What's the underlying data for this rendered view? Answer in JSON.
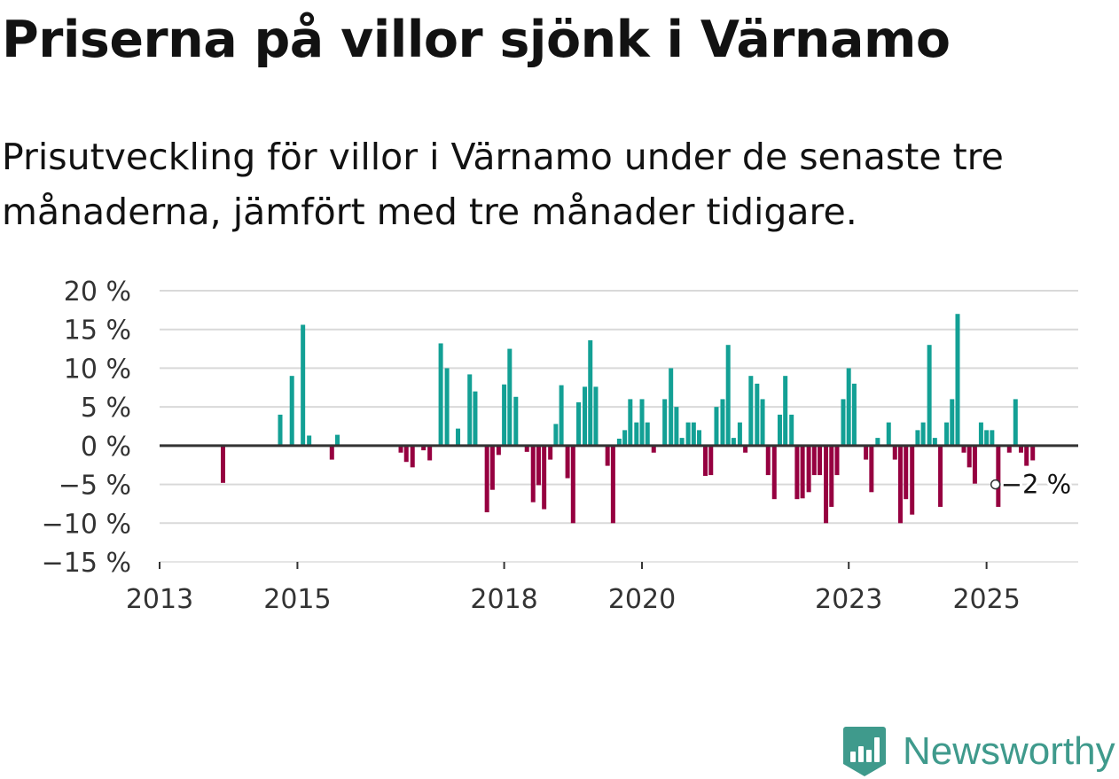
{
  "header": {
    "title": "Priserna på villor sjönk i Värnamo",
    "subtitle": "Prisutveckling för villor i Värnamo under de senaste tre månaderna, jämfört med tre månader tidigare."
  },
  "brand": {
    "name": "Newsworthy"
  },
  "colors": {
    "positive": "#13a095",
    "negative": "#960040",
    "grid": "#d9d9d9",
    "zero_line": "#333333",
    "brand": "#3f9a8c"
  },
  "chart_data": {
    "type": "bar",
    "title": "Priserna på villor sjönk i Värnamo",
    "xlabel": "",
    "ylabel": "",
    "x_unit": "year",
    "ylim": [
      -15,
      20
    ],
    "xlim": [
      2013.0,
      2026.33
    ],
    "y_ticks": [
      20,
      15,
      10,
      5,
      0,
      -5,
      -10,
      -15
    ],
    "y_tick_labels": [
      "20 %",
      "15 %",
      "10 %",
      "5 %",
      "0 %",
      "−5 %",
      "−10 %",
      "−15 %"
    ],
    "x_ticks": [
      2013,
      2015,
      2018,
      2020,
      2023,
      2025
    ],
    "x_tick_labels": [
      "2013",
      "2015",
      "2018",
      "2020",
      "2023",
      "2025"
    ],
    "grid": true,
    "series": [
      {
        "name": "Prisutveckling",
        "x": [
          2013.92,
          2014.75,
          2014.92,
          2015.08,
          2015.17,
          2015.5,
          2015.58,
          2016.5,
          2016.58,
          2016.67,
          2016.83,
          2016.92,
          2017.08,
          2017.17,
          2017.33,
          2017.5,
          2017.58,
          2017.75,
          2017.83,
          2017.92,
          2018.0,
          2018.08,
          2018.17,
          2018.33,
          2018.42,
          2018.5,
          2018.58,
          2018.67,
          2018.75,
          2018.83,
          2018.92,
          2019.0,
          2019.08,
          2019.17,
          2019.25,
          2019.33,
          2019.5,
          2019.58,
          2019.67,
          2019.75,
          2019.83,
          2019.92,
          2020.0,
          2020.08,
          2020.17,
          2020.33,
          2020.42,
          2020.5,
          2020.58,
          2020.67,
          2020.75,
          2020.83,
          2020.92,
          2021.0,
          2021.08,
          2021.17,
          2021.25,
          2021.33,
          2021.42,
          2021.5,
          2021.58,
          2021.67,
          2021.75,
          2021.83,
          2021.92,
          2022.0,
          2022.08,
          2022.17,
          2022.25,
          2022.33,
          2022.42,
          2022.5,
          2022.58,
          2022.67,
          2022.75,
          2022.83,
          2022.92,
          2023.0,
          2023.08,
          2023.25,
          2023.33,
          2023.42,
          2023.58,
          2023.67,
          2023.75,
          2023.83,
          2023.92,
          2024.0,
          2024.08,
          2024.17,
          2024.25,
          2024.33,
          2024.42,
          2024.5,
          2024.58,
          2024.67,
          2024.75,
          2024.83,
          2024.92,
          2025.0,
          2025.08,
          2025.17,
          2025.33,
          2025.42,
          2025.5,
          2025.58,
          2025.67
        ],
        "values": [
          -4.8,
          4.0,
          9.0,
          15.6,
          1.3,
          -1.8,
          1.4,
          -0.9,
          -2.1,
          -2.8,
          -0.6,
          -1.9,
          13.2,
          10.0,
          2.2,
          9.2,
          7.0,
          -8.6,
          -5.7,
          -1.2,
          7.9,
          12.5,
          6.3,
          -0.8,
          -7.3,
          -5.1,
          -8.2,
          -1.8,
          2.8,
          7.8,
          -4.2,
          -10.0,
          5.6,
          7.6,
          13.6,
          7.6,
          -2.6,
          -10.0,
          0.9,
          2.0,
          6.0,
          3.0,
          6.0,
          3.0,
          -0.9,
          6.0,
          10.0,
          5.0,
          1.0,
          3.0,
          3.0,
          2.0,
          -3.9,
          -3.8,
          5.0,
          6.0,
          13.0,
          1.0,
          3.0,
          -0.9,
          9.0,
          8.0,
          6.0,
          -3.8,
          -6.9,
          4.0,
          9.0,
          4.0,
          -6.9,
          -6.8,
          -6.0,
          -3.8,
          -3.8,
          -10.0,
          -7.9,
          -3.8,
          6.0,
          10.0,
          8.0,
          -1.8,
          -6.0,
          1.0,
          3.0,
          -1.8,
          -10.0,
          -6.9,
          -8.9,
          2.0,
          3.0,
          13.0,
          1.0,
          -7.9,
          3.0,
          6.0,
          17.0,
          -0.9,
          -2.8,
          -4.9,
          3.0,
          2.0,
          2.0,
          -7.9,
          -0.9,
          6.0,
          -0.9,
          -2.6,
          -1.9
        ]
      }
    ],
    "annotation": {
      "label": "−2 %",
      "x": 2025.67,
      "y": -1.9
    }
  }
}
